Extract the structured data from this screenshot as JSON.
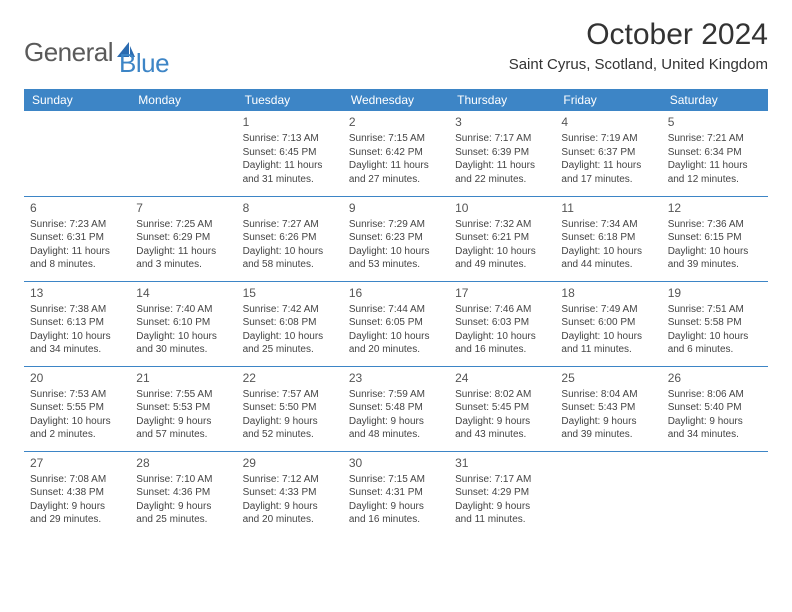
{
  "logo": {
    "part1": "General",
    "part2": "Blue"
  },
  "title": "October 2024",
  "location": "Saint Cyrus, Scotland, United Kingdom",
  "colors": {
    "accent": "#3d85c6",
    "text": "#333333",
    "bg": "#ffffff"
  },
  "dayHeaders": [
    "Sunday",
    "Monday",
    "Tuesday",
    "Wednesday",
    "Thursday",
    "Friday",
    "Saturday"
  ],
  "weeks": [
    [
      null,
      null,
      {
        "n": "1",
        "sr": "Sunrise: 7:13 AM",
        "ss": "Sunset: 6:45 PM",
        "dl": "Daylight: 11 hours and 31 minutes."
      },
      {
        "n": "2",
        "sr": "Sunrise: 7:15 AM",
        "ss": "Sunset: 6:42 PM",
        "dl": "Daylight: 11 hours and 27 minutes."
      },
      {
        "n": "3",
        "sr": "Sunrise: 7:17 AM",
        "ss": "Sunset: 6:39 PM",
        "dl": "Daylight: 11 hours and 22 minutes."
      },
      {
        "n": "4",
        "sr": "Sunrise: 7:19 AM",
        "ss": "Sunset: 6:37 PM",
        "dl": "Daylight: 11 hours and 17 minutes."
      },
      {
        "n": "5",
        "sr": "Sunrise: 7:21 AM",
        "ss": "Sunset: 6:34 PM",
        "dl": "Daylight: 11 hours and 12 minutes."
      }
    ],
    [
      {
        "n": "6",
        "sr": "Sunrise: 7:23 AM",
        "ss": "Sunset: 6:31 PM",
        "dl": "Daylight: 11 hours and 8 minutes."
      },
      {
        "n": "7",
        "sr": "Sunrise: 7:25 AM",
        "ss": "Sunset: 6:29 PM",
        "dl": "Daylight: 11 hours and 3 minutes."
      },
      {
        "n": "8",
        "sr": "Sunrise: 7:27 AM",
        "ss": "Sunset: 6:26 PM",
        "dl": "Daylight: 10 hours and 58 minutes."
      },
      {
        "n": "9",
        "sr": "Sunrise: 7:29 AM",
        "ss": "Sunset: 6:23 PM",
        "dl": "Daylight: 10 hours and 53 minutes."
      },
      {
        "n": "10",
        "sr": "Sunrise: 7:32 AM",
        "ss": "Sunset: 6:21 PM",
        "dl": "Daylight: 10 hours and 49 minutes."
      },
      {
        "n": "11",
        "sr": "Sunrise: 7:34 AM",
        "ss": "Sunset: 6:18 PM",
        "dl": "Daylight: 10 hours and 44 minutes."
      },
      {
        "n": "12",
        "sr": "Sunrise: 7:36 AM",
        "ss": "Sunset: 6:15 PM",
        "dl": "Daylight: 10 hours and 39 minutes."
      }
    ],
    [
      {
        "n": "13",
        "sr": "Sunrise: 7:38 AM",
        "ss": "Sunset: 6:13 PM",
        "dl": "Daylight: 10 hours and 34 minutes."
      },
      {
        "n": "14",
        "sr": "Sunrise: 7:40 AM",
        "ss": "Sunset: 6:10 PM",
        "dl": "Daylight: 10 hours and 30 minutes."
      },
      {
        "n": "15",
        "sr": "Sunrise: 7:42 AM",
        "ss": "Sunset: 6:08 PM",
        "dl": "Daylight: 10 hours and 25 minutes."
      },
      {
        "n": "16",
        "sr": "Sunrise: 7:44 AM",
        "ss": "Sunset: 6:05 PM",
        "dl": "Daylight: 10 hours and 20 minutes."
      },
      {
        "n": "17",
        "sr": "Sunrise: 7:46 AM",
        "ss": "Sunset: 6:03 PM",
        "dl": "Daylight: 10 hours and 16 minutes."
      },
      {
        "n": "18",
        "sr": "Sunrise: 7:49 AM",
        "ss": "Sunset: 6:00 PM",
        "dl": "Daylight: 10 hours and 11 minutes."
      },
      {
        "n": "19",
        "sr": "Sunrise: 7:51 AM",
        "ss": "Sunset: 5:58 PM",
        "dl": "Daylight: 10 hours and 6 minutes."
      }
    ],
    [
      {
        "n": "20",
        "sr": "Sunrise: 7:53 AM",
        "ss": "Sunset: 5:55 PM",
        "dl": "Daylight: 10 hours and 2 minutes."
      },
      {
        "n": "21",
        "sr": "Sunrise: 7:55 AM",
        "ss": "Sunset: 5:53 PM",
        "dl": "Daylight: 9 hours and 57 minutes."
      },
      {
        "n": "22",
        "sr": "Sunrise: 7:57 AM",
        "ss": "Sunset: 5:50 PM",
        "dl": "Daylight: 9 hours and 52 minutes."
      },
      {
        "n": "23",
        "sr": "Sunrise: 7:59 AM",
        "ss": "Sunset: 5:48 PM",
        "dl": "Daylight: 9 hours and 48 minutes."
      },
      {
        "n": "24",
        "sr": "Sunrise: 8:02 AM",
        "ss": "Sunset: 5:45 PM",
        "dl": "Daylight: 9 hours and 43 minutes."
      },
      {
        "n": "25",
        "sr": "Sunrise: 8:04 AM",
        "ss": "Sunset: 5:43 PM",
        "dl": "Daylight: 9 hours and 39 minutes."
      },
      {
        "n": "26",
        "sr": "Sunrise: 8:06 AM",
        "ss": "Sunset: 5:40 PM",
        "dl": "Daylight: 9 hours and 34 minutes."
      }
    ],
    [
      {
        "n": "27",
        "sr": "Sunrise: 7:08 AM",
        "ss": "Sunset: 4:38 PM",
        "dl": "Daylight: 9 hours and 29 minutes."
      },
      {
        "n": "28",
        "sr": "Sunrise: 7:10 AM",
        "ss": "Sunset: 4:36 PM",
        "dl": "Daylight: 9 hours and 25 minutes."
      },
      {
        "n": "29",
        "sr": "Sunrise: 7:12 AM",
        "ss": "Sunset: 4:33 PM",
        "dl": "Daylight: 9 hours and 20 minutes."
      },
      {
        "n": "30",
        "sr": "Sunrise: 7:15 AM",
        "ss": "Sunset: 4:31 PM",
        "dl": "Daylight: 9 hours and 16 minutes."
      },
      {
        "n": "31",
        "sr": "Sunrise: 7:17 AM",
        "ss": "Sunset: 4:29 PM",
        "dl": "Daylight: 9 hours and 11 minutes."
      },
      null,
      null
    ]
  ]
}
